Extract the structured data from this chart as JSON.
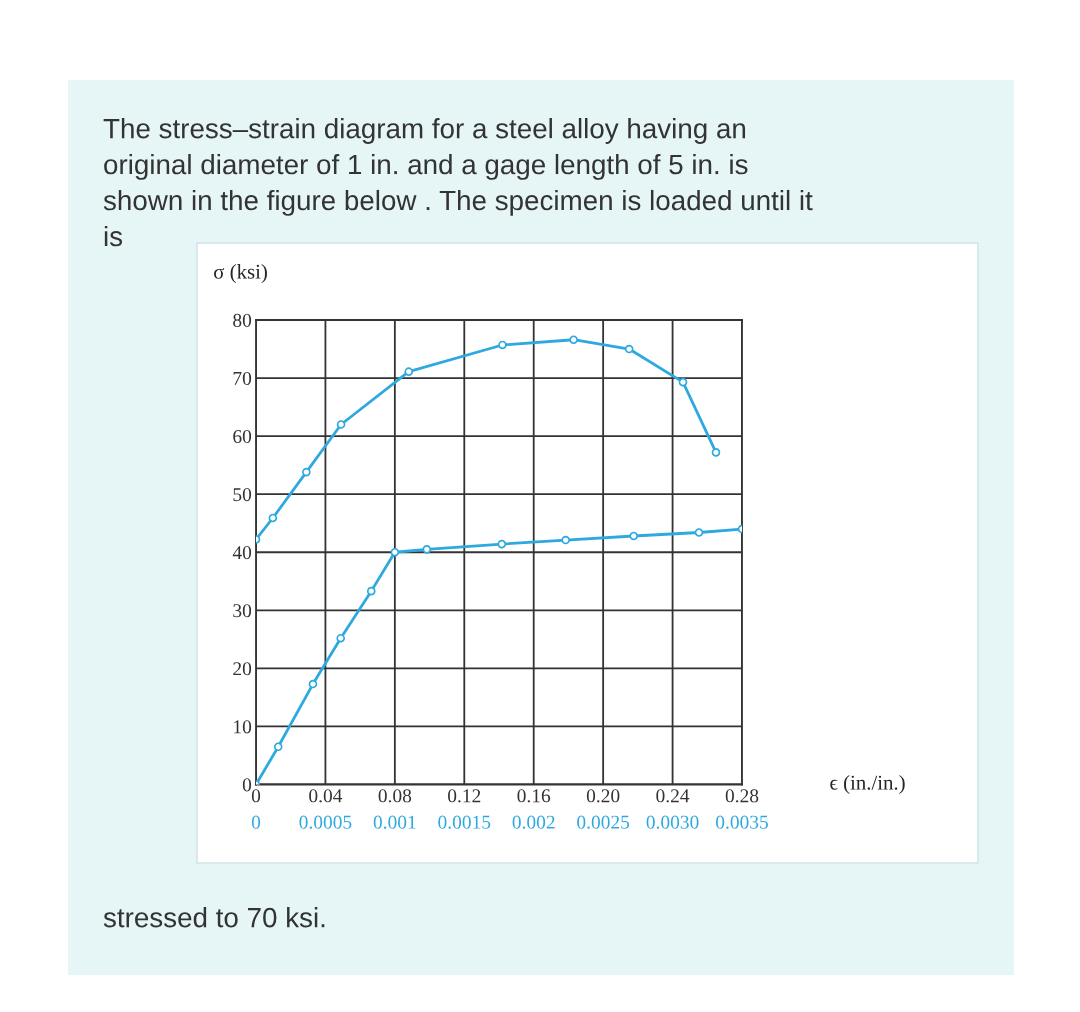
{
  "chart_data": {
    "type": "line",
    "title": "The stress–strain diagram for a steel alloy having an\noriginal diameter of 1 in. and a gage length of 5 in. is\nshown in the figure below . The specimen is loaded until it\nis",
    "annotations": [
      "stressed to 70 ksi."
    ],
    "ylabel": "σ (ksi)",
    "xlabel": "ϵ (in./in.)",
    "series": [
      {
        "color": "#2ea9e0",
        "x": [
          0,
          0.0097,
          0.029,
          0.049,
          0.088,
          0.142,
          0.183,
          0.215,
          0.246,
          0.265
        ],
        "values": [
          42.2,
          45.9,
          53.8,
          62.0,
          71.1,
          75.7,
          76.6,
          75.0,
          69.3,
          57.2
        ]
      },
      {
        "color": "#2ea9e0",
        "axis": "x2",
        "x": [
          0,
          0.00016,
          0.00041,
          0.00061,
          0.00083,
          0.001,
          0.00123,
          0.00177,
          0.00223,
          0.00272,
          0.00319,
          0.0035
        ],
        "values": [
          0,
          6.5,
          17.3,
          25.2,
          33.3,
          40,
          40.5,
          41.4,
          42.1,
          42.8,
          43.4,
          44.0
        ]
      }
    ],
    "xlim": [
      0,
      0.28
    ],
    "xticks": [
      0,
      0.04,
      0.08,
      0.12,
      0.16,
      {
        "value": 0.2,
        "label": "0.20"
      },
      0.24,
      0.28
    ],
    "x2lim": [
      0,
      0.0035
    ],
    "x2ticks": [
      0,
      0.0005,
      0.001,
      0.0015,
      0.002,
      0.0025,
      {
        "value": 0.003,
        "label": "0.0030"
      },
      0.0035
    ],
    "ylim": [
      0,
      80
    ],
    "yticks": [
      0,
      10,
      20,
      30,
      40,
      50,
      60,
      70,
      80
    ],
    "grid": true,
    "marker": "circle",
    "line_style": "solid"
  }
}
